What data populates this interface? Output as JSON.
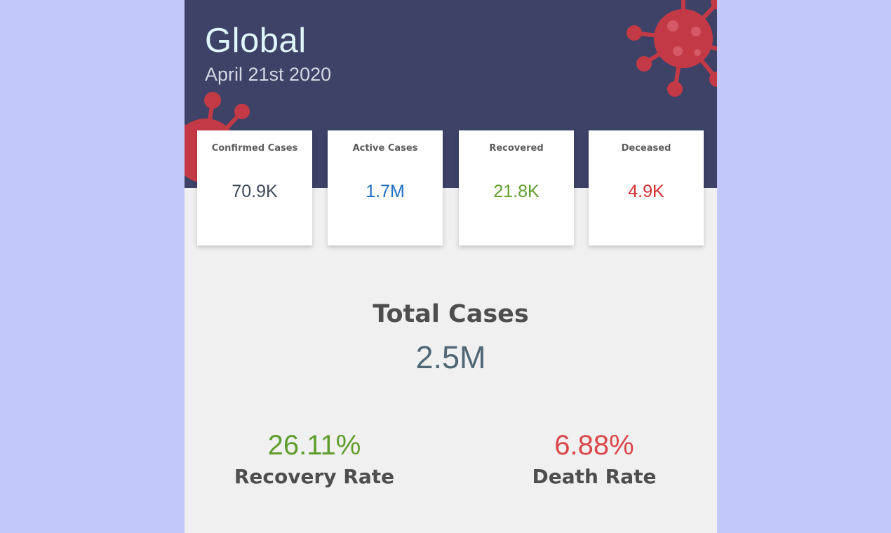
{
  "header": {
    "title": "Global",
    "date": "April 21st 2020"
  },
  "cards": [
    {
      "label": "Confirmed Cases",
      "value": "70.9K",
      "color": "#3f4b5c"
    },
    {
      "label": "Active Cases",
      "value": "1.7M",
      "color": "#1e6fc4"
    },
    {
      "label": "Recovered",
      "value": "21.8K",
      "color": "#5f9e2c"
    },
    {
      "label": "Deceased",
      "value": "4.9K",
      "color": "#d32f2f"
    }
  ],
  "total": {
    "label": "Total Cases",
    "value": "2.5M"
  },
  "rates": {
    "recovery": {
      "value": "26.11%",
      "label": "Recovery Rate",
      "color": "#5f9e2c"
    },
    "death": {
      "value": "6.88%",
      "label": "Death Rate",
      "color": "#d9474a"
    }
  },
  "colors": {
    "page_background": "#c3c8fb",
    "header_background": "#3d4266",
    "panel_background": "#f0f0f0",
    "virus": "#c33a46"
  },
  "icons": [
    "virus-icon"
  ]
}
